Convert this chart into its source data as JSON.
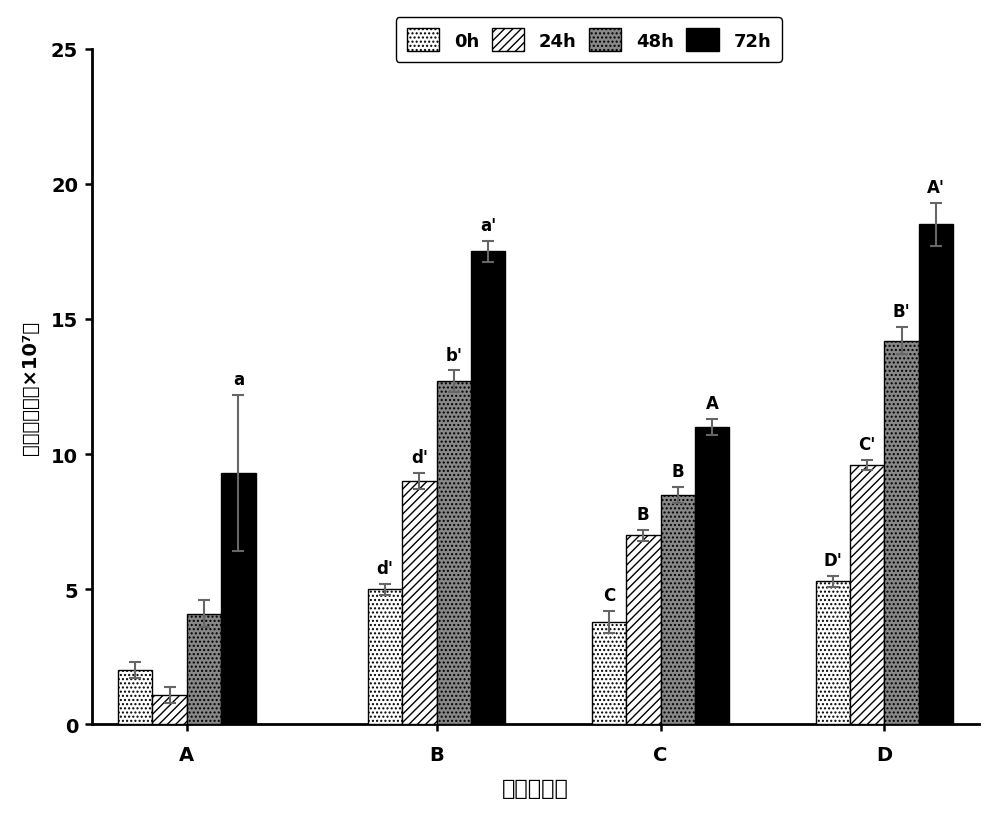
{
  "groups": [
    "A",
    "B",
    "C",
    "D"
  ],
  "times": [
    "0h",
    "24h",
    "48h",
    "72h"
  ],
  "values": {
    "A": [
      2.0,
      1.1,
      4.1,
      9.3
    ],
    "B": [
      5.0,
      9.0,
      12.7,
      17.5
    ],
    "C": [
      3.8,
      7.0,
      8.5,
      11.0
    ],
    "D": [
      5.3,
      9.6,
      14.2,
      18.5
    ]
  },
  "errors": {
    "A": [
      0.3,
      0.3,
      0.5,
      2.9
    ],
    "B": [
      0.2,
      0.3,
      0.4,
      0.4
    ],
    "C": [
      0.4,
      0.2,
      0.3,
      0.3
    ],
    "D": [
      0.2,
      0.2,
      0.5,
      0.8
    ]
  },
  "annotations": {
    "A": [
      "",
      "",
      "",
      "a"
    ],
    "B": [
      "d'",
      "d'",
      "b'",
      "a'"
    ],
    "C": [
      "C",
      "B",
      "B",
      "A"
    ],
    "D": [
      "D'",
      "C'",
      "B'",
      "A'"
    ]
  },
  "xlabel": "冻存液种类",
  "ylabel": "活细胞数量（×10⁷）",
  "ylim": [
    0,
    25
  ],
  "yticks": [
    0,
    5,
    10,
    15,
    20,
    25
  ],
  "bar_width": 0.2,
  "background_color": "#ffffff",
  "bar_edge_color": "#000000",
  "error_color": "#666666",
  "annotation_fontsize": 12,
  "axis_fontsize": 15,
  "legend_fontsize": 13,
  "tick_fontsize": 14
}
